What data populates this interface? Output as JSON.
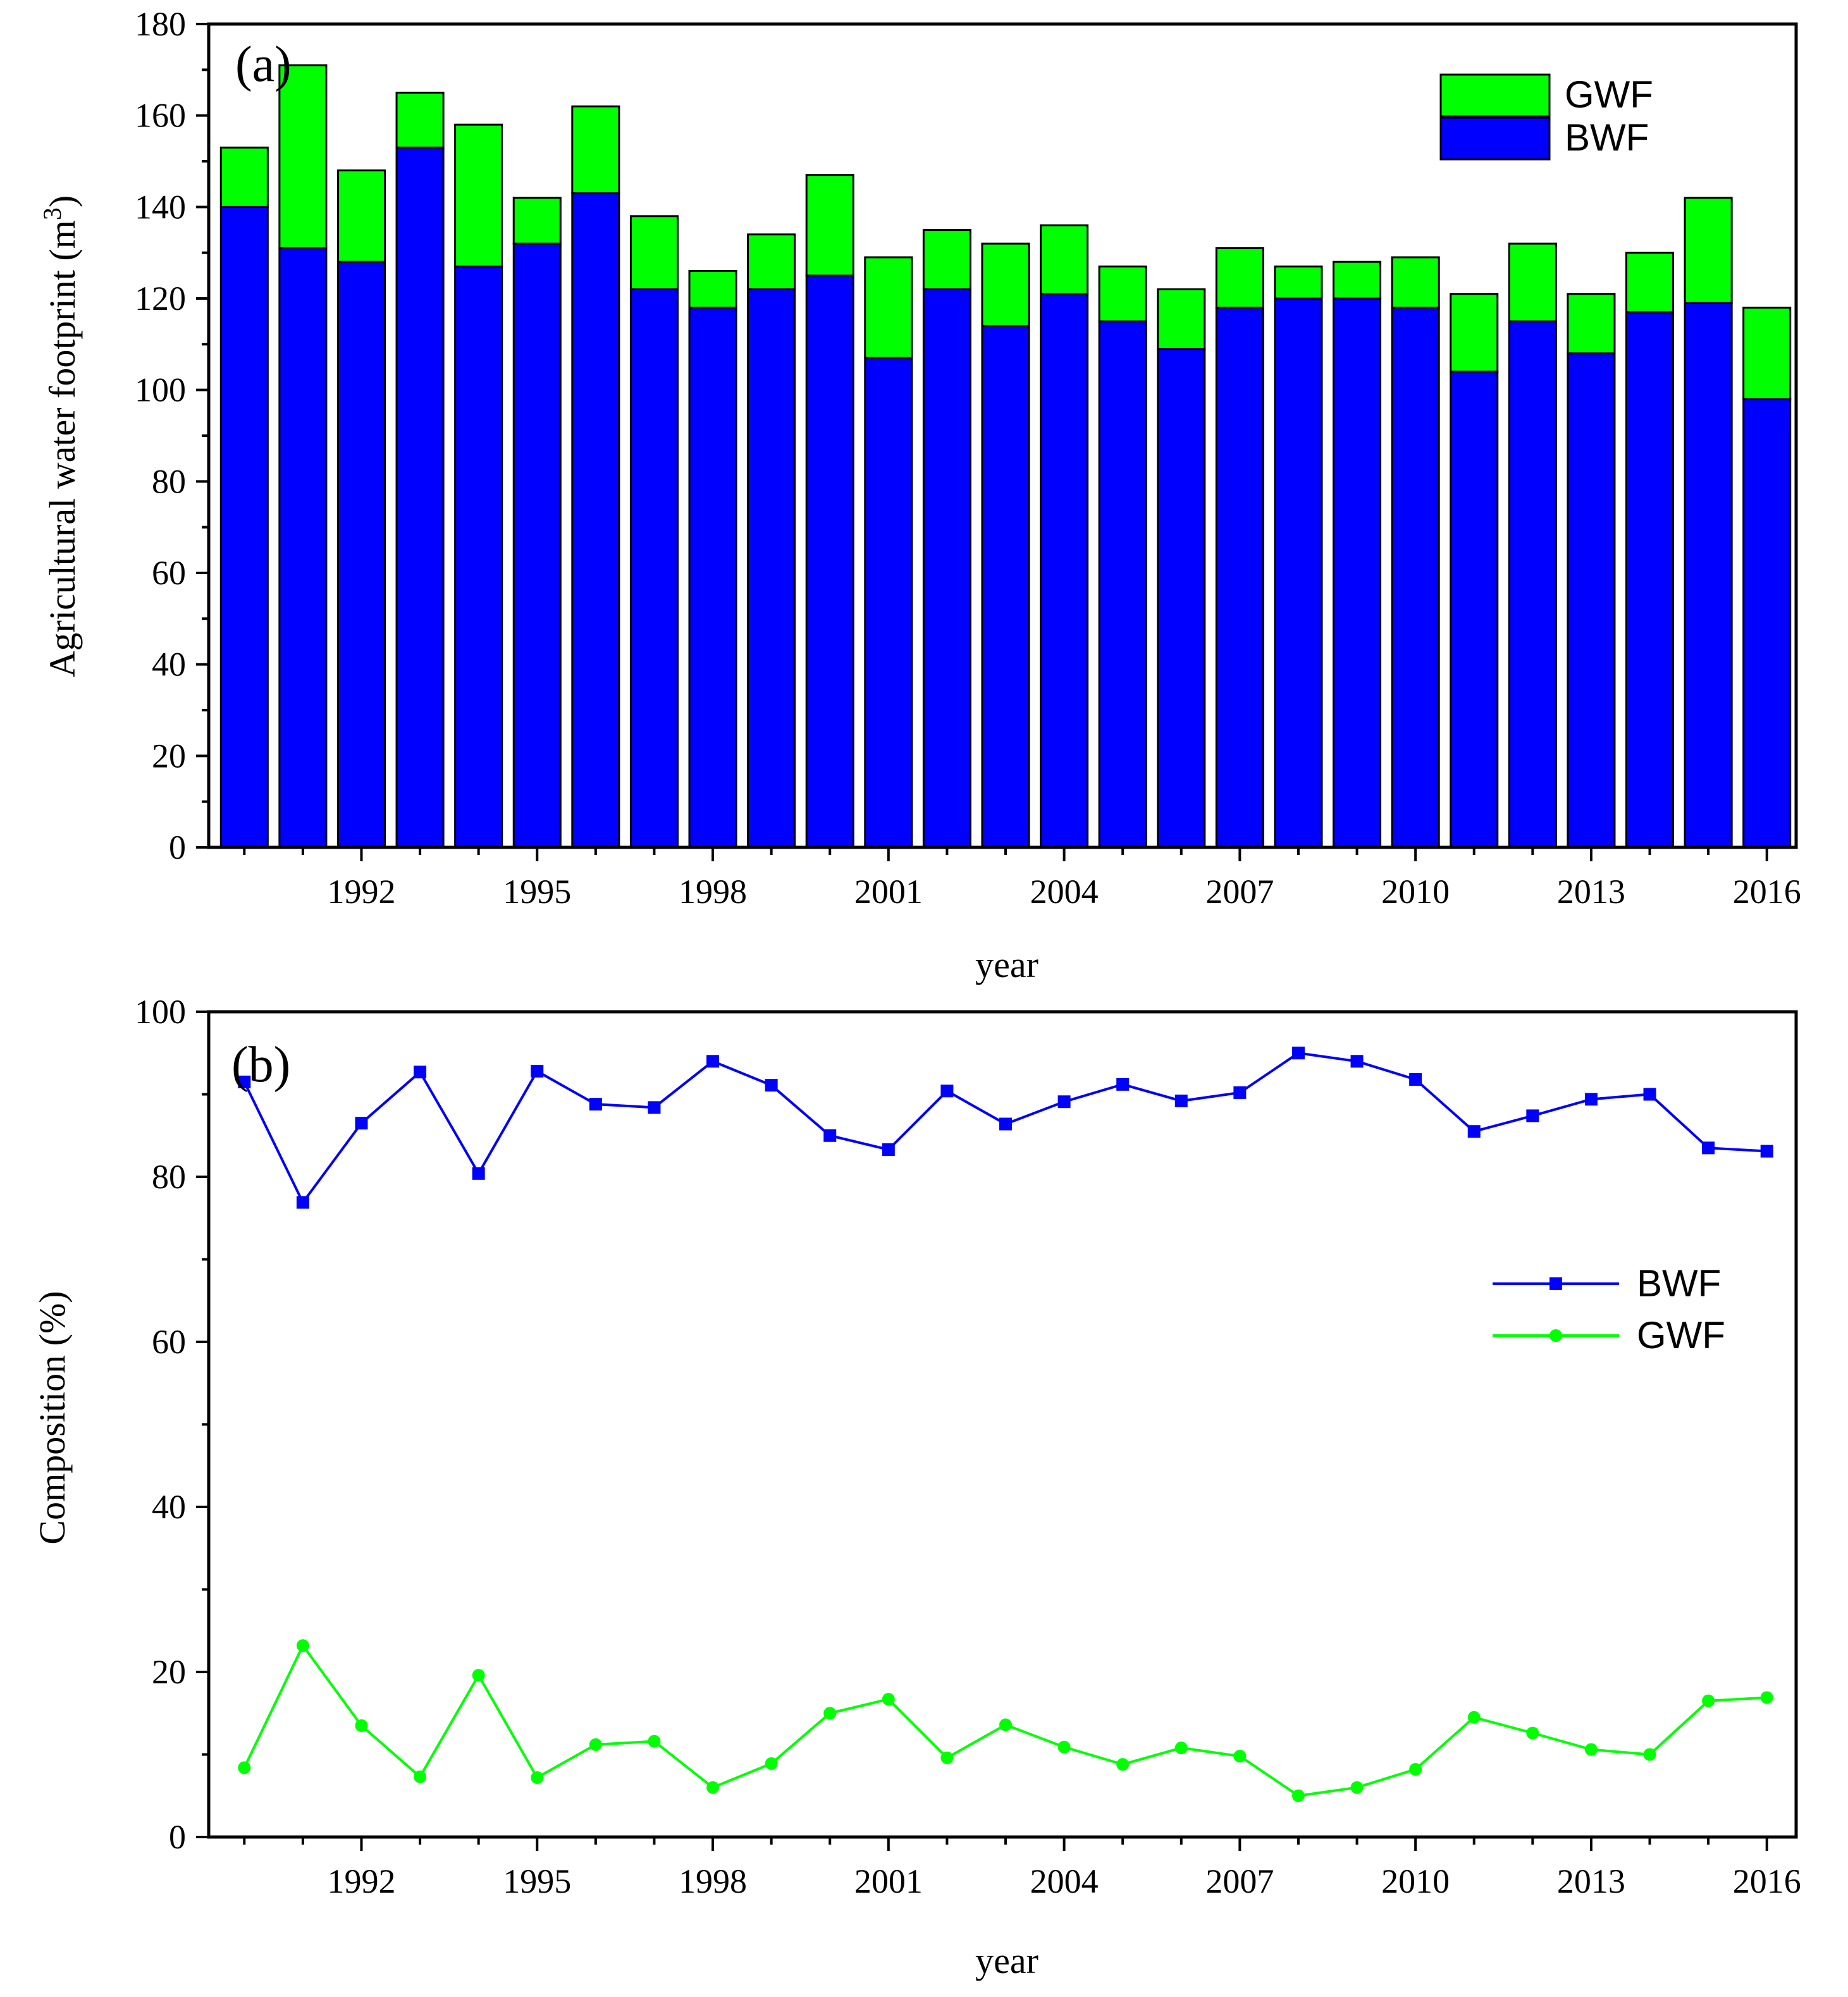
{
  "chart_data": [
    {
      "type": "bar",
      "stacked": true,
      "panel_label": "(a)",
      "xlabel": "year",
      "ylabel_prefix": "Agricultural water footprint (m",
      "ylabel_sup": "3",
      "ylabel_suffix": ")",
      "ylim": [
        0,
        180
      ],
      "yticks": [
        "0",
        "20",
        "40",
        "60",
        "80",
        "100",
        "120",
        "140",
        "160",
        "180"
      ],
      "xtick_years": [
        "1992",
        "1995",
        "1998",
        "2001",
        "2004",
        "2007",
        "2010",
        "2013",
        "2016"
      ],
      "x": [
        1990,
        1991,
        1992,
        1993,
        1994,
        1995,
        1996,
        1997,
        1998,
        1999,
        2000,
        2001,
        2002,
        2003,
        2004,
        2005,
        2006,
        2007,
        2008,
        2009,
        2010,
        2011,
        2012,
        2013,
        2014,
        2015,
        2016
      ],
      "series": [
        {
          "name": "BWF",
          "color": "#0000ff",
          "values": [
            140,
            131,
            128,
            153,
            127,
            132,
            143,
            122,
            118,
            122,
            125,
            107,
            122,
            114,
            121,
            115,
            109,
            118,
            120,
            120,
            118,
            104,
            115,
            108,
            117,
            119,
            98
          ]
        },
        {
          "name": "GWF",
          "color": "#00ff00",
          "values": [
            13,
            40,
            20,
            12,
            31,
            10,
            19,
            16,
            8,
            12,
            22,
            22,
            13,
            18,
            15,
            12,
            13,
            13,
            7,
            8,
            11,
            17,
            17,
            13,
            13,
            23,
            20
          ]
        }
      ],
      "legend": {
        "placement": "top-right",
        "items": [
          {
            "label": "GWF",
            "color": "#00ff00"
          },
          {
            "label": "BWF",
            "color": "#0000ff"
          }
        ]
      }
    },
    {
      "type": "line",
      "panel_label": "(b)",
      "xlabel": "year",
      "ylabel": "Composition (%)",
      "ylim": [
        0,
        100
      ],
      "yticks": [
        "0",
        "20",
        "40",
        "60",
        "80",
        "100"
      ],
      "xtick_years": [
        "1992",
        "1995",
        "1998",
        "2001",
        "2004",
        "2007",
        "2010",
        "2013",
        "2016"
      ],
      "x": [
        1990,
        1991,
        1992,
        1993,
        1994,
        1995,
        1996,
        1997,
        1998,
        1999,
        2000,
        2001,
        2002,
        2003,
        2004,
        2005,
        2006,
        2007,
        2008,
        2009,
        2010,
        2011,
        2012,
        2013,
        2014,
        2015,
        2016
      ],
      "series": [
        {
          "name": "BWF",
          "color": "#0000ff",
          "marker": "square",
          "values": [
            91.5,
            76.9,
            86.5,
            92.7,
            80.4,
            92.8,
            88.8,
            88.4,
            94.0,
            91.1,
            85.0,
            83.3,
            90.4,
            86.4,
            89.1,
            91.2,
            89.2,
            90.2,
            95.0,
            94.0,
            91.8,
            85.5,
            87.4,
            89.4,
            90.0,
            83.5,
            83.1
          ]
        },
        {
          "name": "GWF",
          "color": "#00ff00",
          "marker": "circle",
          "values": [
            8.4,
            23.2,
            13.5,
            7.3,
            19.6,
            7.2,
            11.2,
            11.6,
            6.0,
            8.9,
            15.0,
            16.7,
            9.6,
            13.6,
            10.9,
            8.8,
            10.8,
            9.8,
            5.0,
            6.0,
            8.2,
            14.5,
            12.6,
            10.6,
            10.0,
            16.5,
            16.9
          ]
        }
      ],
      "legend": {
        "placement": "right",
        "items": [
          {
            "label": "BWF",
            "color": "#0000ff",
            "marker": "square"
          },
          {
            "label": "GWF",
            "color": "#00ff00",
            "marker": "circle"
          }
        ]
      }
    }
  ]
}
